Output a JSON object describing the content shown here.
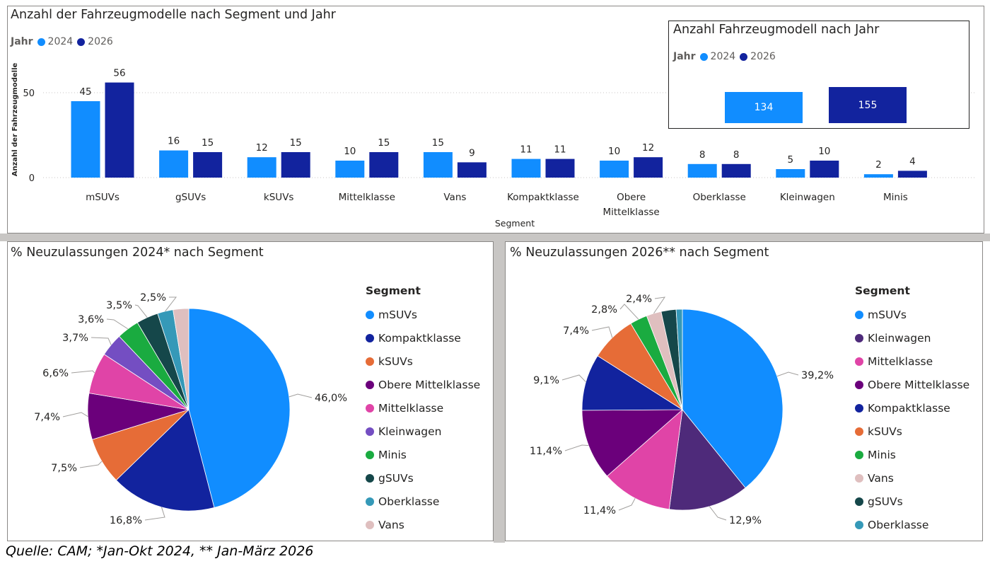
{
  "bar_panel": {
    "title": "Anzahl der Fahrzeugmodelle nach Segment und Jahr",
    "legend_title": "Jahr",
    "ylabel": "Anzahl der Fahrzeugmodelle",
    "xlabel": "Segment"
  },
  "kpi_panel": {
    "title": "Anzahl Fahrzeugmodell nach Jahr",
    "legend_title": "Jahr",
    "items": [
      {
        "label": "2024",
        "value": "134",
        "color": "#118dff"
      },
      {
        "label": "2026",
        "value": "155",
        "color": "#12239e"
      }
    ]
  },
  "pie1_panel": {
    "title": "% Neuzulassungen 2024* nach Segment",
    "legend_title": "Segment"
  },
  "pie2_panel": {
    "title": "% Neuzulassungen 2026** nach Segment",
    "legend_title": "Segment"
  },
  "source": "Quelle: CAM; *Jan-Okt 2024, ** Jan-März 2026",
  "chart_data": [
    {
      "type": "bar",
      "title": "Anzahl der Fahrzeugmodelle nach Segment und Jahr",
      "xlabel": "Segment",
      "ylabel": "Anzahl der Fahrzeugmodelle",
      "categories": [
        "mSUVs",
        "gSUVs",
        "kSUVs",
        "Mittelklasse",
        "Vans",
        "Kompaktklasse",
        "Obere Mittelklasse",
        "Oberklasse",
        "Kleinwagen",
        "Minis"
      ],
      "series": [
        {
          "name": "2024",
          "color": "#118dff",
          "values": [
            45,
            16,
            12,
            10,
            15,
            11,
            10,
            8,
            5,
            2
          ]
        },
        {
          "name": "2026",
          "color": "#12239e",
          "values": [
            56,
            15,
            15,
            15,
            9,
            11,
            12,
            8,
            10,
            4
          ]
        }
      ],
      "yticks": [
        0,
        50
      ],
      "ylim": [
        0,
        60
      ],
      "grid": true,
      "legend": "top-left"
    },
    {
      "type": "pie",
      "title": "% Neuzulassungen 2024* nach Segment",
      "legend": "right",
      "slices": [
        {
          "label": "mSUVs",
          "value": 46.0,
          "text": "46,0%",
          "color": "#118dff"
        },
        {
          "label": "Kompaktklasse",
          "value": 16.8,
          "text": "16,8%",
          "color": "#12239e"
        },
        {
          "label": "kSUVs",
          "value": 7.5,
          "text": "7,5%",
          "color": "#e66c37"
        },
        {
          "label": "Obere Mittelklasse",
          "value": 7.4,
          "text": "7,4%",
          "color": "#6b007b"
        },
        {
          "label": "Mittelklasse",
          "value": 6.6,
          "text": "6,6%",
          "color": "#e044a7"
        },
        {
          "label": "Kleinwagen",
          "value": 3.7,
          "text": "3,7%",
          "color": "#744ec2"
        },
        {
          "label": "Minis",
          "value": 3.6,
          "text": "3,6%",
          "color": "#1aab40"
        },
        {
          "label": "gSUVs",
          "value": 3.5,
          "text": "3,5%",
          "color": "#15474a"
        },
        {
          "label": "Oberklasse",
          "value": 2.5,
          "text": "2,5%",
          "color": "#3599b8"
        },
        {
          "label": "Vans",
          "value": 2.5,
          "text": "",
          "color": "#dfbfbf"
        }
      ]
    },
    {
      "type": "pie",
      "title": "% Neuzulassungen 2026** nach Segment",
      "legend": "right",
      "slices": [
        {
          "label": "mSUVs",
          "value": 39.2,
          "text": "39,2%",
          "color": "#118dff"
        },
        {
          "label": "Kleinwagen",
          "value": 12.9,
          "text": "12,9%",
          "color": "#4e2a7a"
        },
        {
          "label": "Mittelklasse",
          "value": 11.4,
          "text": "11,4%",
          "color": "#e044a7"
        },
        {
          "label": "Obere Mittelklasse",
          "value": 11.4,
          "text": "11,4%",
          "color": "#6b007b"
        },
        {
          "label": "Kompaktklasse",
          "value": 9.1,
          "text": "9,1%",
          "color": "#12239e"
        },
        {
          "label": "kSUVs",
          "value": 7.4,
          "text": "7,4%",
          "color": "#e66c37"
        },
        {
          "label": "Minis",
          "value": 2.8,
          "text": "2,8%",
          "color": "#1aab40"
        },
        {
          "label": "Vans",
          "value": 2.4,
          "text": "2,4%",
          "color": "#dfbfbf"
        },
        {
          "label": "gSUVs",
          "value": 2.4,
          "text": "",
          "color": "#15474a"
        },
        {
          "label": "Oberklasse",
          "value": 1.0,
          "text": "",
          "color": "#3599b8"
        }
      ],
      "legend_order": [
        "mSUVs",
        "Kleinwagen",
        "Mittelklasse",
        "Obere Mittelklasse",
        "Kompaktklasse",
        "kSUVs",
        "Minis",
        "Vans",
        "gSUVs",
        "Oberklasse"
      ]
    }
  ]
}
